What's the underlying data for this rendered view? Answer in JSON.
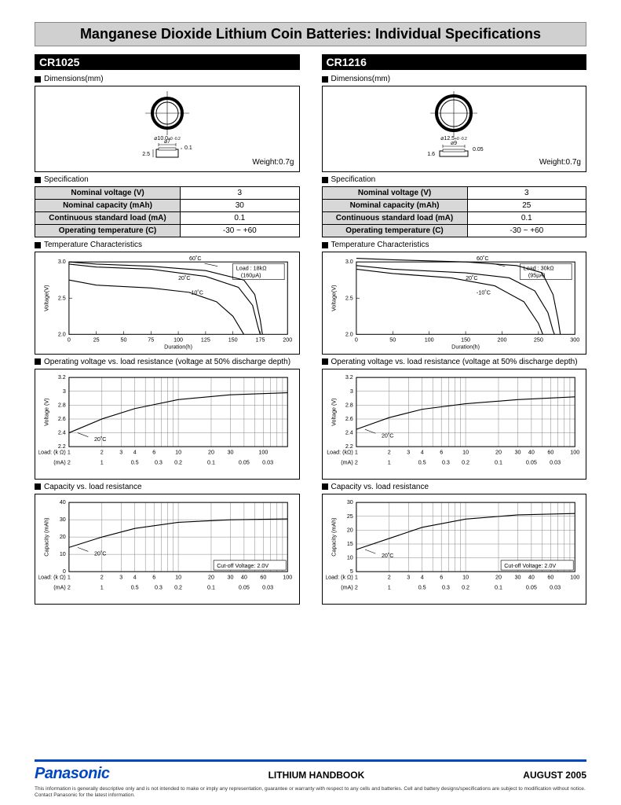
{
  "page_title": "Manganese Dioxide Lithium Coin Batteries: Individual Specifications",
  "footer": {
    "brand": "Panasonic",
    "title": "LITHIUM HANDBOOK",
    "date": "AUGUST 2005",
    "disclaimer": "This information is generally descriptive only and is not intended to make or imply any representation, guarantee or warranty with respect to any cells and batteries. Cell and battery designs/specifications are subject to modification without notice. Contact Panasonic for the latest information."
  },
  "sections": {
    "dimensions": "Dimensions(mm)",
    "specification": "Specification",
    "temp": "Temperature Characteristics",
    "volt_load": "Operating voltage vs. load resistance (voltage at 50% discharge depth)",
    "cap_load": "Capacity vs. load resistance"
  },
  "left": {
    "part": "CR1025",
    "weight": "Weight:0.7g",
    "diagram": {
      "diameter": "⌀10.0",
      "tol": "+0 -0.2",
      "inner": "⌀7",
      "h1": "0.1",
      "h2": "2.5",
      "htol": "+0 -0.3"
    },
    "spec": {
      "rows": [
        {
          "label": "Nominal voltage (V)",
          "value": "3"
        },
        {
          "label": "Nominal capacity (mAh)",
          "value": "30"
        },
        {
          "label": "Continuous standard load (mA)",
          "value": "0.1"
        },
        {
          "label": "Operating temperature (C)",
          "value": "-30 ~ +60"
        }
      ]
    },
    "temp_chart": {
      "type": "line",
      "ylabel": "Voltage(V)",
      "xlabel": "Duration(h)",
      "ylim": [
        2.0,
        3.0
      ],
      "yticks": [
        2.0,
        2.5,
        3.0
      ],
      "xlim": [
        0,
        200
      ],
      "xticks": [
        0,
        25,
        50,
        75,
        100,
        125,
        150,
        175,
        200
      ],
      "load_label": "Load : 18kΩ",
      "load_sub": "(160µA)",
      "curves": {
        "60C": {
          "label": "60˚C",
          "pts": [
            [
              0,
              3.0
            ],
            [
              25,
              2.97
            ],
            [
              75,
              2.94
            ],
            [
              125,
              2.88
            ],
            [
              160,
              2.75
            ],
            [
              170,
              2.55
            ],
            [
              175,
              2.2
            ],
            [
              177,
              2.0
            ]
          ]
        },
        "20C": {
          "label": "20˚C",
          "pts": [
            [
              0,
              2.97
            ],
            [
              25,
              2.93
            ],
            [
              75,
              2.9
            ],
            [
              125,
              2.8
            ],
            [
              155,
              2.65
            ],
            [
              168,
              2.4
            ],
            [
              173,
              2.1
            ],
            [
              175,
              2.0
            ]
          ]
        },
        "m10C": {
          "label": "-10˚C",
          "pts": [
            [
              0,
              2.75
            ],
            [
              25,
              2.68
            ],
            [
              75,
              2.64
            ],
            [
              110,
              2.58
            ],
            [
              135,
              2.45
            ],
            [
              150,
              2.25
            ],
            [
              158,
              2.05
            ],
            [
              160,
              2.0
            ]
          ]
        }
      }
    },
    "volt_chart": {
      "type": "semilogx",
      "ylabel": "Voltage (V)",
      "ylim": [
        2.2,
        3.2
      ],
      "yticks": [
        2.2,
        2.4,
        2.6,
        2.8,
        3.0,
        3.2
      ],
      "xlim": [
        1,
        100
      ],
      "xticks_k": [
        "1",
        "2",
        "3",
        "4",
        "6",
        "10",
        "20",
        "30",
        "",
        "100"
      ],
      "xticks_ma": [
        "2",
        "1",
        "0.5",
        "0.3",
        "0.2",
        "0.1",
        "0.05",
        "0.03"
      ],
      "axis_k": "Load: (k Ω)",
      "axis_ma": "(mA)",
      "label_20c": "20˚C",
      "pts": [
        [
          1,
          2.4
        ],
        [
          2,
          2.6
        ],
        [
          4,
          2.75
        ],
        [
          10,
          2.88
        ],
        [
          30,
          2.95
        ],
        [
          100,
          2.98
        ]
      ]
    },
    "cap_chart": {
      "type": "semilogx",
      "ylabel": "Capacity (mAh)",
      "ylim": [
        0,
        40
      ],
      "yticks": [
        0,
        10,
        20,
        30,
        40
      ],
      "xlim": [
        1,
        100
      ],
      "axis_k": "Load: (k Ω)",
      "axis_ma": "(mA)",
      "label_20c": "20˚C",
      "cutoff": "Cut-off Voltage: 2.0V",
      "xticks_k": [
        "1",
        "2",
        "3",
        "4",
        "6",
        "10",
        "20",
        "30",
        "40",
        "60",
        "100"
      ],
      "xticks_ma": [
        "2",
        "1",
        "0.5",
        "0.3",
        "0.2",
        "0.1",
        "0.05",
        "0.03"
      ],
      "pts": [
        [
          1,
          14
        ],
        [
          2,
          20
        ],
        [
          4,
          25
        ],
        [
          10,
          28.5
        ],
        [
          30,
          30
        ],
        [
          100,
          30.5
        ]
      ]
    }
  },
  "right": {
    "part": "CR1216",
    "weight": "Weight:0.7g",
    "diagram": {
      "diameter": "⌀12.5",
      "tol": "+0 -0.2",
      "inner": "⌀9",
      "h1": "0.05",
      "h2": "1.6",
      "htol": "+0 -0.2"
    },
    "spec": {
      "rows": [
        {
          "label": "Nominal voltage (V)",
          "value": "3"
        },
        {
          "label": "Nominal capacity (mAh)",
          "value": "25"
        },
        {
          "label": "Continuous standard load (mA)",
          "value": "0.1"
        },
        {
          "label": "Operating temperature (C)",
          "value": "-30 ~ +60"
        }
      ]
    },
    "temp_chart": {
      "type": "line",
      "ylabel": "Voltage(V)",
      "xlabel": "Duration(h)",
      "ylim": [
        2.0,
        3.0
      ],
      "yticks": [
        2.0,
        2.5,
        3.0
      ],
      "xlim": [
        0,
        300
      ],
      "xticks": [
        0,
        50,
        100,
        150,
        200,
        250,
        300
      ],
      "load_label": "Load : 30kΩ",
      "load_sub": "(95µA)",
      "curves": {
        "60C": {
          "label": "60˚C",
          "pts": [
            [
              0,
              3.05
            ],
            [
              50,
              3.03
            ],
            [
              150,
              3.0
            ],
            [
              220,
              2.95
            ],
            [
              255,
              2.85
            ],
            [
              270,
              2.55
            ],
            [
              277,
              2.2
            ],
            [
              280,
              2.0
            ]
          ]
        },
        "20C": {
          "label": "20˚C",
          "pts": [
            [
              0,
              2.95
            ],
            [
              50,
              2.9
            ],
            [
              150,
              2.85
            ],
            [
              210,
              2.78
            ],
            [
              245,
              2.6
            ],
            [
              263,
              2.3
            ],
            [
              270,
              2.05
            ],
            [
              272,
              2.0
            ]
          ]
        },
        "m10C": {
          "label": "-10˚C",
          "pts": [
            [
              0,
              2.9
            ],
            [
              50,
              2.84
            ],
            [
              130,
              2.78
            ],
            [
              190,
              2.67
            ],
            [
              230,
              2.45
            ],
            [
              250,
              2.15
            ],
            [
              256,
              2.0
            ]
          ]
        }
      }
    },
    "volt_chart": {
      "type": "semilogx",
      "ylabel": "Voltage (V)",
      "ylim": [
        2.2,
        3.2
      ],
      "yticks": [
        2.2,
        2.4,
        2.6,
        2.8,
        3.0,
        3.2
      ],
      "xlim": [
        1,
        100
      ],
      "xticks_k": [
        "1",
        "2",
        "3",
        "4",
        "6",
        "10",
        "20",
        "30",
        "40",
        "60",
        "100"
      ],
      "xticks_ma": [
        "2",
        "1",
        "0.5",
        "0.3",
        "0.2",
        "0.1",
        "0.05",
        "0.03"
      ],
      "axis_k": "Load: (kΩ)",
      "axis_ma": "(mA)",
      "label_20c": "20˚C",
      "pts": [
        [
          1,
          2.45
        ],
        [
          2,
          2.62
        ],
        [
          4,
          2.74
        ],
        [
          10,
          2.82
        ],
        [
          30,
          2.88
        ],
        [
          100,
          2.92
        ]
      ]
    },
    "cap_chart": {
      "type": "semilogx",
      "ylabel": "Capacity (mAh)",
      "ylim": [
        5,
        30
      ],
      "yticks": [
        5,
        10,
        15,
        20,
        25,
        30
      ],
      "xlim": [
        1,
        100
      ],
      "axis_k": "Load: (k Ω)",
      "axis_ma": "(mA)",
      "label_20c": "20˚C",
      "cutoff": "Cut-off Voltage: 2.0V",
      "xticks_k": [
        "1",
        "2",
        "3",
        "4",
        "6",
        "10",
        "20",
        "30",
        "40",
        "60",
        "100"
      ],
      "xticks_ma": [
        "2",
        "1",
        "0.5",
        "0.3",
        "0.2",
        "0.1",
        "0.05",
        "0.03"
      ],
      "pts": [
        [
          1,
          13
        ],
        [
          2,
          17
        ],
        [
          4,
          21
        ],
        [
          10,
          24
        ],
        [
          30,
          25.5
        ],
        [
          100,
          26
        ]
      ]
    }
  }
}
